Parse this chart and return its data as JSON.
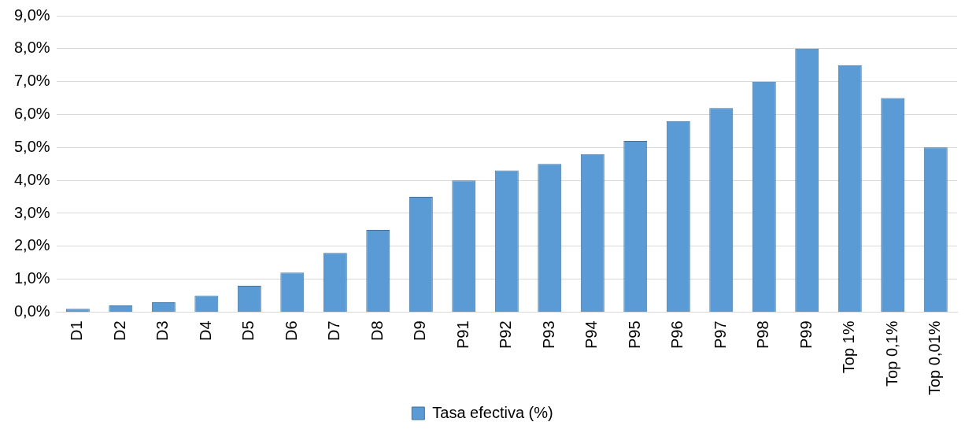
{
  "chart_data": {
    "type": "bar",
    "categories": [
      "D1",
      "D2",
      "D3",
      "D4",
      "D5",
      "D6",
      "D7",
      "D8",
      "D9",
      "P91",
      "P92",
      "P93",
      "P94",
      "P95",
      "P96",
      "P97",
      "P98",
      "P99",
      "Top 1%",
      "Top 0,1%",
      "Top 0,01%"
    ],
    "series": [
      {
        "name": "Tasa efectiva (%)",
        "color": "#5b9bd5",
        "values": [
          0.1,
          0.2,
          0.3,
          0.5,
          0.8,
          1.2,
          1.8,
          2.5,
          3.5,
          4.0,
          4.3,
          4.5,
          4.8,
          5.2,
          5.8,
          6.2,
          7.0,
          8.0,
          7.5,
          6.5,
          5.0
        ]
      }
    ],
    "ylim": [
      0,
      9
    ],
    "yticks": [
      {
        "value": 0,
        "label": "0,0%"
      },
      {
        "value": 1,
        "label": "1,0%"
      },
      {
        "value": 2,
        "label": "2,0%"
      },
      {
        "value": 3,
        "label": "3,0%"
      },
      {
        "value": 4,
        "label": "4,0%"
      },
      {
        "value": 5,
        "label": "5,0%"
      },
      {
        "value": 6,
        "label": "6,0%"
      },
      {
        "value": 7,
        "label": "7,0%"
      },
      {
        "value": 8,
        "label": "8,0%"
      },
      {
        "value": 9,
        "label": "9,0%"
      }
    ],
    "grid": "y",
    "legend": "bottom"
  }
}
